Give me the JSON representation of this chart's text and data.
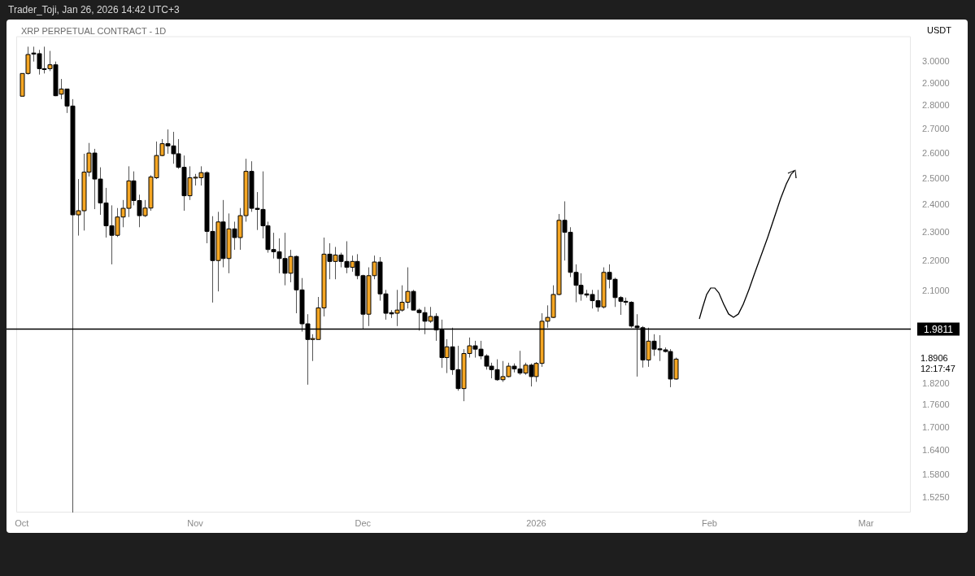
{
  "chart_data": {
    "type": "candlestick",
    "title": "XRP PERPETUAL CONTRACT - 1D",
    "ylabel": "USDT",
    "log": "y",
    "annotations": [
      "Trader_Toji, Jan 26, 2026 14:42 UTC+3",
      "1.8906",
      "12:17:47"
    ],
    "xlim": [
      "2025-09-30",
      "2026-03-09"
    ],
    "xticks": [
      {
        "value": "2025-10-01",
        "label": "Oct"
      },
      {
        "value": "2025-11-01",
        "label": "Nov"
      },
      {
        "value": "2025-12-01",
        "label": "Dec"
      },
      {
        "value": "2026-01-01",
        "label": "2026"
      },
      {
        "value": "2026-02-01",
        "label": "Feb"
      },
      {
        "value": "2026-03-01",
        "label": "Mar"
      }
    ],
    "ylim": [
      1.49,
      3.12
    ],
    "yticks": [
      {
        "value": 1.525,
        "label": "1.5250"
      },
      {
        "value": 1.58,
        "label": "1.5800"
      },
      {
        "value": 1.64,
        "label": "1.6400"
      },
      {
        "value": 1.7,
        "label": "1.7000"
      },
      {
        "value": 1.76,
        "label": "1.7600"
      },
      {
        "value": 1.82,
        "label": "1.8200"
      },
      {
        "value": 2.1,
        "label": "2.1000"
      },
      {
        "value": 2.2,
        "label": "2.2000"
      },
      {
        "value": 2.3,
        "label": "2.3000"
      },
      {
        "value": 2.4,
        "label": "2.4000"
      },
      {
        "value": 2.5,
        "label": "2.5000"
      },
      {
        "value": 2.6,
        "label": "2.6000"
      },
      {
        "value": 2.7,
        "label": "2.7000"
      },
      {
        "value": 2.8,
        "label": "2.8000"
      },
      {
        "value": 2.9,
        "label": "2.9000"
      },
      {
        "value": 3,
        "label": "3.0000"
      }
    ],
    "ref_lines": [
      {
        "axis": "y",
        "value": 1.9811,
        "label": "1.9811",
        "color": "#000000"
      }
    ],
    "x": [
      "2025-10-01",
      "2025-10-02",
      "2025-10-03",
      "2025-10-04",
      "2025-10-05",
      "2025-10-06",
      "2025-10-07",
      "2025-10-08",
      "2025-10-09",
      "2025-10-10",
      "2025-10-11",
      "2025-10-12",
      "2025-10-13",
      "2025-10-14",
      "2025-10-15",
      "2025-10-16",
      "2025-10-17",
      "2025-10-18",
      "2025-10-19",
      "2025-10-20",
      "2025-10-21",
      "2025-10-22",
      "2025-10-23",
      "2025-10-24",
      "2025-10-25",
      "2025-10-26",
      "2025-10-27",
      "2025-10-28",
      "2025-10-29",
      "2025-10-30",
      "2025-10-31",
      "2025-11-01",
      "2025-11-02",
      "2025-11-03",
      "2025-11-04",
      "2025-11-05",
      "2025-11-06",
      "2025-11-07",
      "2025-11-08",
      "2025-11-09",
      "2025-11-10",
      "2025-11-11",
      "2025-11-12",
      "2025-11-13",
      "2025-11-14",
      "2025-11-15",
      "2025-11-16",
      "2025-11-17",
      "2025-11-18",
      "2025-11-19",
      "2025-11-20",
      "2025-11-21",
      "2025-11-22",
      "2025-11-23",
      "2025-11-24",
      "2025-11-25",
      "2025-11-26",
      "2025-11-27",
      "2025-11-28",
      "2025-11-29",
      "2025-11-30",
      "2025-12-01",
      "2025-12-02",
      "2025-12-03",
      "2025-12-04",
      "2025-12-05",
      "2025-12-06",
      "2025-12-07",
      "2025-12-08",
      "2025-12-09",
      "2025-12-10",
      "2025-12-11",
      "2025-12-12",
      "2025-12-13",
      "2025-12-14",
      "2025-12-15",
      "2025-12-16",
      "2025-12-17",
      "2025-12-18",
      "2025-12-19",
      "2025-12-20",
      "2025-12-21",
      "2025-12-22",
      "2025-12-23",
      "2025-12-24",
      "2025-12-25",
      "2025-12-26",
      "2025-12-27",
      "2025-12-28",
      "2025-12-29",
      "2025-12-30",
      "2025-12-31",
      "2026-01-01",
      "2026-01-02",
      "2026-01-03",
      "2026-01-04",
      "2026-01-05",
      "2026-01-06",
      "2026-01-07",
      "2026-01-08",
      "2026-01-09",
      "2026-01-10",
      "2026-01-11",
      "2026-01-12",
      "2026-01-13",
      "2026-01-14",
      "2026-01-15",
      "2026-01-16",
      "2026-01-17",
      "2026-01-18",
      "2026-01-19",
      "2026-01-20",
      "2026-01-21",
      "2026-01-22",
      "2026-01-23",
      "2026-01-24",
      "2026-01-25",
      "2026-01-26"
    ],
    "ohlc": [
      [
        2.843,
        2.945,
        2.843,
        2.945
      ],
      [
        2.945,
        3.07,
        2.94,
        3.033
      ],
      [
        3.04,
        3.07,
        3.0,
        3.035
      ],
      [
        3.037,
        3.055,
        2.94,
        2.967
      ],
      [
        2.967,
        3.07,
        2.945,
        2.965
      ],
      [
        2.967,
        3.05,
        2.956,
        2.985
      ],
      [
        2.985,
        3.0,
        2.843,
        2.845
      ],
      [
        2.852,
        2.92,
        2.83,
        2.875
      ],
      [
        2.875,
        2.875,
        2.77,
        2.8
      ],
      [
        2.8,
        2.83,
        1.49,
        2.365
      ],
      [
        2.365,
        2.5,
        2.29,
        2.38
      ],
      [
        2.38,
        2.6,
        2.308,
        2.527
      ],
      [
        2.527,
        2.644,
        2.51,
        2.603
      ],
      [
        2.603,
        2.62,
        2.386,
        2.5
      ],
      [
        2.5,
        2.546,
        2.365,
        2.409
      ],
      [
        2.409,
        2.466,
        2.283,
        2.325
      ],
      [
        2.325,
        2.4,
        2.19,
        2.291
      ],
      [
        2.291,
        2.39,
        2.285,
        2.357
      ],
      [
        2.357,
        2.42,
        2.32,
        2.389
      ],
      [
        2.389,
        2.55,
        2.357,
        2.493
      ],
      [
        2.493,
        2.53,
        2.4,
        2.418
      ],
      [
        2.418,
        2.44,
        2.32,
        2.362
      ],
      [
        2.362,
        2.42,
        2.357,
        2.39
      ],
      [
        2.39,
        2.515,
        2.38,
        2.508
      ],
      [
        2.505,
        2.65,
        2.5,
        2.593
      ],
      [
        2.593,
        2.66,
        2.59,
        2.641
      ],
      [
        2.641,
        2.7,
        2.6,
        2.632
      ],
      [
        2.632,
        2.69,
        2.56,
        2.6
      ],
      [
        2.6,
        2.66,
        2.54,
        2.546
      ],
      [
        2.546,
        2.593,
        2.38,
        2.436
      ],
      [
        2.436,
        2.55,
        2.42,
        2.505
      ],
      [
        2.505,
        2.52,
        2.475,
        2.507
      ],
      [
        2.505,
        2.55,
        2.475,
        2.525
      ],
      [
        2.525,
        2.53,
        2.263,
        2.305
      ],
      [
        2.305,
        2.36,
        2.064,
        2.203
      ],
      [
        2.203,
        2.376,
        2.1,
        2.339
      ],
      [
        2.339,
        2.42,
        2.18,
        2.21
      ],
      [
        2.21,
        2.37,
        2.16,
        2.314
      ],
      [
        2.314,
        2.34,
        2.24,
        2.283
      ],
      [
        2.283,
        2.39,
        2.24,
        2.362
      ],
      [
        2.362,
        2.58,
        2.34,
        2.53
      ],
      [
        2.53,
        2.57,
        2.376,
        2.389
      ],
      [
        2.389,
        2.45,
        2.31,
        2.385
      ],
      [
        2.385,
        2.53,
        2.28,
        2.325
      ],
      [
        2.325,
        2.34,
        2.23,
        2.241
      ],
      [
        2.241,
        2.3,
        2.21,
        2.233
      ],
      [
        2.233,
        2.28,
        2.16,
        2.21
      ],
      [
        2.21,
        2.3,
        2.12,
        2.16
      ],
      [
        2.16,
        2.24,
        2.13,
        2.217
      ],
      [
        2.217,
        2.22,
        2.03,
        2.105
      ],
      [
        2.105,
        2.144,
        1.973,
        1.997
      ],
      [
        1.997,
        2.027,
        1.817,
        1.949
      ],
      [
        1.949,
        1.965,
        1.885,
        1.952
      ],
      [
        1.949,
        2.082,
        1.949,
        2.047
      ],
      [
        2.047,
        2.283,
        2.02,
        2.225
      ],
      [
        2.225,
        2.263,
        2.14,
        2.2
      ],
      [
        2.2,
        2.25,
        2.14,
        2.222
      ],
      [
        2.222,
        2.23,
        2.18,
        2.2
      ],
      [
        2.2,
        2.27,
        2.16,
        2.18
      ],
      [
        2.18,
        2.22,
        2.165,
        2.2
      ],
      [
        2.2,
        2.225,
        2.14,
        2.152
      ],
      [
        2.152,
        2.155,
        1.98,
        2.027
      ],
      [
        2.027,
        2.18,
        1.99,
        2.152
      ],
      [
        2.152,
        2.22,
        2.14,
        2.198
      ],
      [
        2.198,
        2.215,
        2.07,
        2.092
      ],
      [
        2.092,
        2.105,
        2.01,
        2.03
      ],
      [
        2.032,
        2.04,
        2.015,
        2.028
      ],
      [
        2.03,
        2.105,
        1.99,
        2.04
      ],
      [
        2.04,
        2.12,
        2.035,
        2.065
      ],
      [
        2.065,
        2.18,
        2.045,
        2.1
      ],
      [
        2.1,
        2.105,
        2.04,
        2.04
      ],
      [
        2.04,
        2.045,
        1.976,
        2.032
      ],
      [
        2.032,
        2.05,
        1.965,
        2.005
      ],
      [
        2.005,
        2.05,
        2.0,
        2.02
      ],
      [
        2.02,
        2.03,
        1.945,
        1.978
      ],
      [
        1.978,
        2.01,
        1.865,
        1.895
      ],
      [
        1.895,
        1.95,
        1.85,
        1.927
      ],
      [
        1.927,
        1.985,
        1.845,
        1.86
      ],
      [
        1.86,
        1.93,
        1.8,
        1.806
      ],
      [
        1.806,
        1.92,
        1.771,
        1.907
      ],
      [
        1.907,
        1.955,
        1.895,
        1.93
      ],
      [
        1.93,
        1.945,
        1.895,
        1.92
      ],
      [
        1.92,
        1.945,
        1.89,
        1.9
      ],
      [
        1.9,
        1.905,
        1.86,
        1.87
      ],
      [
        1.87,
        1.88,
        1.835,
        1.86
      ],
      [
        1.86,
        1.89,
        1.828,
        1.831
      ],
      [
        1.831,
        1.885,
        1.825,
        1.84
      ],
      [
        1.84,
        1.88,
        1.838,
        1.87
      ],
      [
        1.87,
        1.878,
        1.852,
        1.862
      ],
      [
        1.862,
        1.915,
        1.845,
        1.85
      ],
      [
        1.85,
        1.88,
        1.845,
        1.873
      ],
      [
        1.873,
        1.878,
        1.812,
        1.84
      ],
      [
        1.84,
        1.882,
        1.825,
        1.878
      ],
      [
        1.878,
        2.03,
        1.868,
        2.005
      ],
      [
        2.005,
        2.055,
        1.985,
        2.017
      ],
      [
        2.017,
        2.12,
        2.015,
        2.09
      ],
      [
        2.09,
        2.368,
        2.087,
        2.345
      ],
      [
        2.345,
        2.415,
        2.203,
        2.302
      ],
      [
        2.302,
        2.32,
        2.147,
        2.163
      ],
      [
        2.163,
        2.19,
        2.065,
        2.12
      ],
      [
        2.12,
        2.16,
        2.07,
        2.092
      ],
      [
        2.092,
        2.105,
        2.08,
        2.088
      ],
      [
        2.09,
        2.105,
        2.045,
        2.07
      ],
      [
        2.07,
        2.105,
        2.035,
        2.05
      ],
      [
        2.05,
        2.18,
        2.045,
        2.163
      ],
      [
        2.163,
        2.19,
        2.11,
        2.14
      ],
      [
        2.14,
        2.145,
        2.05,
        2.08
      ],
      [
        2.08,
        2.085,
        2.025,
        2.068
      ],
      [
        2.068,
        2.08,
        2.055,
        2.065
      ],
      [
        2.065,
        2.068,
        1.985,
        1.99
      ],
      [
        1.99,
        2.027,
        1.84,
        1.985
      ],
      [
        1.985,
        1.99,
        1.866,
        1.888
      ],
      [
        1.888,
        1.985,
        1.868,
        1.944
      ],
      [
        1.944,
        1.965,
        1.9,
        1.92
      ],
      [
        1.921,
        1.962,
        1.885,
        1.918
      ],
      [
        1.918,
        1.925,
        1.91,
        1.913
      ],
      [
        1.913,
        1.92,
        1.81,
        1.833
      ],
      [
        1.833,
        1.895,
        1.831,
        1.8906
      ]
    ],
    "colors": [
      "#f5a623",
      "#f5a623",
      "#000000",
      "#000000",
      "#000000",
      "#f5a623",
      "#000000",
      "#f5a623",
      "#000000",
      "#000000",
      "#f5a623",
      "#f5a623",
      "#f5a623",
      "#000000",
      "#000000",
      "#000000",
      "#000000",
      "#f5a623",
      "#f5a623",
      "#f5a623",
      "#000000",
      "#000000",
      "#f5a623",
      "#f5a623",
      "#f5a623",
      "#f5a623",
      "#000000",
      "#000000",
      "#000000",
      "#000000",
      "#f5a623",
      "#f5a623",
      "#f5a623",
      "#000000",
      "#000000",
      "#f5a623",
      "#000000",
      "#f5a623",
      "#000000",
      "#f5a623",
      "#f5a623",
      "#000000",
      "#000000",
      "#000000",
      "#000000",
      "#000000",
      "#000000",
      "#000000",
      "#f5a623",
      "#000000",
      "#000000",
      "#000000",
      "#f5a623",
      "#f5a623",
      "#f5a623",
      "#000000",
      "#f5a623",
      "#000000",
      "#000000",
      "#f5a623",
      "#000000",
      "#000000",
      "#f5a623",
      "#f5a623",
      "#000000",
      "#000000",
      "#000000",
      "#f5a623",
      "#f5a623",
      "#f5a623",
      "#000000",
      "#000000",
      "#000000",
      "#f5a623",
      "#000000",
      "#000000",
      "#f5a623",
      "#000000",
      "#000000",
      "#f5a623",
      "#f5a623",
      "#000000",
      "#000000",
      "#000000",
      "#000000",
      "#000000",
      "#f5a623",
      "#f5a623",
      "#000000",
      "#000000",
      "#f5a623",
      "#000000",
      "#f5a623",
      "#f5a623",
      "#f5a623",
      "#f5a623",
      "#f5a623",
      "#000000",
      "#000000",
      "#000000",
      "#000000",
      "#000000",
      "#000000",
      "#000000",
      "#f5a623",
      "#000000",
      "#000000",
      "#000000",
      "#000000",
      "#000000",
      "#000000",
      "#000000",
      "#f5a623",
      "#000000",
      "#000000",
      "#000000",
      "#000000",
      "#f5a623"
    ]
  }
}
